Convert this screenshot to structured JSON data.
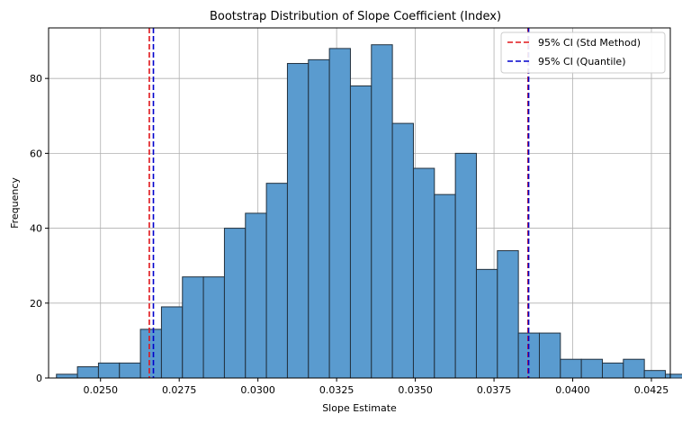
{
  "chart_data": {
    "type": "bar",
    "title": "Bootstrap Distribution of Slope Coefficient (Index)",
    "xlabel": "Slope Estimate",
    "ylabel": "Frequency",
    "xlim": [
      0.02335,
      0.0431
    ],
    "ylim": [
      0,
      93.5
    ],
    "xticks": [
      0.025,
      0.0275,
      0.03,
      0.0325,
      0.035,
      0.0375,
      0.04,
      0.0425
    ],
    "xtick_labels": [
      "0.0250",
      "0.0275",
      "0.0300",
      "0.0325",
      "0.0350",
      "0.0375",
      "0.0400",
      "0.0425"
    ],
    "yticks": [
      0,
      20,
      40,
      60,
      80
    ],
    "ytick_labels": [
      "0",
      "20",
      "40",
      "60",
      "80"
    ],
    "grid": true,
    "bin_start": 0.0236,
    "bin_width": 0.000667,
    "counts": [
      1,
      3,
      4,
      4,
      13,
      19,
      27,
      27,
      40,
      44,
      52,
      84,
      85,
      88,
      78,
      89,
      68,
      56,
      49,
      60,
      29,
      34,
      12,
      12,
      5,
      5,
      4,
      5,
      2,
      1
    ],
    "bar_color": "#5a9bcf",
    "bar_edge_color": "#22313f",
    "ci_lines": [
      {
        "name": "95% CI (Std Method)",
        "color": "#e0161b",
        "values": [
          0.02655,
          0.03858
        ]
      },
      {
        "name": "95% CI (Quantile)",
        "color": "#0000cc",
        "values": [
          0.02668,
          0.0386
        ]
      }
    ],
    "legend": {
      "position": "top-right",
      "entries": [
        "95% CI (Std Method)",
        "95% CI (Quantile)"
      ]
    }
  }
}
